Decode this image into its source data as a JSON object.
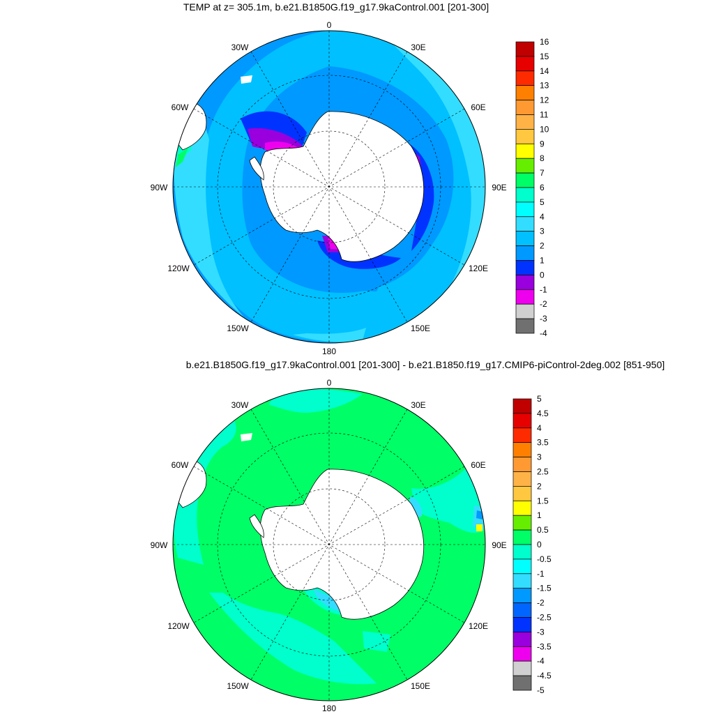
{
  "panels": [
    {
      "title": "TEMP at z= 305.1m, b.e21.B1850G.f19_g17.9kaControl.001 [201-300]",
      "colorbar": {
        "labels": [
          "16",
          "15",
          "14",
          "13",
          "12",
          "11",
          "10",
          "9",
          "8",
          "7",
          "6",
          "5",
          "4",
          "3",
          "2",
          "1",
          "0",
          "-1",
          "-2",
          "-3",
          "-4"
        ],
        "colors": [
          "#c00000",
          "#e60000",
          "#ff2b00",
          "#ff8000",
          "#ff9a33",
          "#ffb347",
          "#ffc840",
          "#ffff00",
          "#66ee00",
          "#00ff66",
          "#00ffcc",
          "#00ffff",
          "#33ddff",
          "#00c0ff",
          "#0099ff",
          "#0033ff",
          "#9900dd",
          "#ee00ee",
          "#d0d0d0",
          "#707070"
        ]
      }
    },
    {
      "title": "b.e21.B1850G.f19_g17.9kaControl.001 [201-300] - b.e21.B1850.f19_g17.CMIP6-piControl-2deg.002 [851-950]",
      "colorbar": {
        "labels": [
          "5",
          "4.5",
          "4",
          "3.5",
          "3",
          "2.5",
          "2",
          "1.5",
          "1",
          "0.5",
          "0",
          "-0.5",
          "-1",
          "-1.5",
          "-2",
          "-2.5",
          "-3",
          "-3.5",
          "-4",
          "-4.5",
          "-5"
        ],
        "colors": [
          "#c00000",
          "#e60000",
          "#ff2b00",
          "#ff8000",
          "#ff9a33",
          "#ffb347",
          "#ffc840",
          "#ffff00",
          "#66ee00",
          "#00ff66",
          "#00ffcc",
          "#00ffff",
          "#33ddff",
          "#0099ff",
          "#0066ff",
          "#0033ff",
          "#9900dd",
          "#ee00ee",
          "#d0d0d0",
          "#707070"
        ]
      }
    }
  ],
  "longitude_labels": [
    "0",
    "30E",
    "60E",
    "90E",
    "120E",
    "150E",
    "180",
    "150W",
    "120W",
    "90W",
    "60W",
    "30W"
  ],
  "colors": {
    "land": "#ffffff",
    "ocean_top": "#00c0ff",
    "ocean_top_inner": "#0099ff",
    "ocean_top_outer": "#33ddff",
    "shelf_blue": "#0033ff",
    "shelf_purple": "#9900dd",
    "shelf_magenta": "#ee00ee",
    "ocean_bottom": "#00ff66",
    "ocean_bottom_cyan": "#00ffcc",
    "ocean_bottom_lightblue": "#33ddff"
  }
}
